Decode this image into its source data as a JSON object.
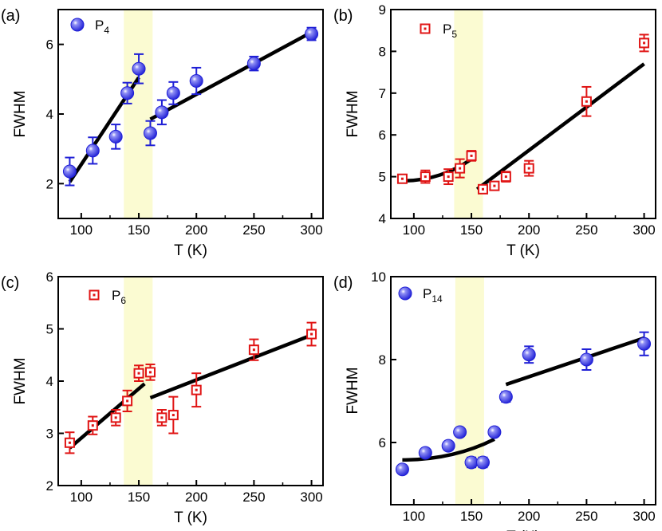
{
  "figure": {
    "colors": {
      "blue": "#1f1fd6",
      "blue_light": "#8f8ff5",
      "red": "#e01414",
      "fit": "#000000",
      "band": "#fbfbd2"
    }
  },
  "chart_data": [
    {
      "type": "scatter",
      "panel_label": "(a)",
      "legend": {
        "base": "P",
        "sub": "4",
        "marker": "filled-circle",
        "color": "blue"
      },
      "xlabel": "T (K)",
      "ylabel": "FWHM",
      "xlim": [
        80,
        310
      ],
      "ylim": [
        1.0,
        7.0
      ],
      "xticks": [
        100,
        150,
        200,
        250,
        300
      ],
      "yticks": [
        2,
        4,
        6
      ],
      "highlight_band": [
        137,
        162
      ],
      "points": [
        {
          "x": 90,
          "y": 2.35,
          "err": 0.4
        },
        {
          "x": 110,
          "y": 2.95,
          "err": 0.38
        },
        {
          "x": 130,
          "y": 3.35,
          "err": 0.35
        },
        {
          "x": 140,
          "y": 4.6,
          "err": 0.3
        },
        {
          "x": 150,
          "y": 5.3,
          "err": 0.42
        },
        {
          "x": 160,
          "y": 3.45,
          "err": 0.35
        },
        {
          "x": 170,
          "y": 4.05,
          "err": 0.35
        },
        {
          "x": 180,
          "y": 4.6,
          "err": 0.32
        },
        {
          "x": 200,
          "y": 4.95,
          "err": 0.38
        },
        {
          "x": 250,
          "y": 5.45,
          "err": 0.2
        },
        {
          "x": 300,
          "y": 6.3,
          "err": 0.18
        }
      ],
      "fit_lines": [
        {
          "x": [
            90,
            150
          ],
          "y": [
            2.05,
            5.05
          ]
        },
        {
          "x": [
            160,
            300
          ],
          "y": [
            3.85,
            6.35
          ]
        }
      ]
    },
    {
      "type": "scatter",
      "panel_label": "(b)",
      "legend": {
        "base": "P",
        "sub": "5",
        "marker": "open-square",
        "color": "red"
      },
      "xlabel": "T (K)",
      "ylabel": "FWHM",
      "xlim": [
        80,
        310
      ],
      "ylim": [
        4,
        9
      ],
      "xticks": [
        100,
        150,
        200,
        250,
        300
      ],
      "yticks": [
        4,
        5,
        6,
        7,
        8,
        9
      ],
      "highlight_band": [
        135,
        160
      ],
      "points": [
        {
          "x": 90,
          "y": 4.95,
          "err": 0.08
        },
        {
          "x": 110,
          "y": 5.0,
          "err": 0.15
        },
        {
          "x": 130,
          "y": 5.0,
          "err": 0.18
        },
        {
          "x": 140,
          "y": 5.2,
          "err": 0.22
        },
        {
          "x": 150,
          "y": 5.5,
          "err": 0.12
        },
        {
          "x": 160,
          "y": 4.7,
          "err": 0.08
        },
        {
          "x": 170,
          "y": 4.78,
          "err": 0.08
        },
        {
          "x": 180,
          "y": 5.0,
          "err": 0.12
        },
        {
          "x": 200,
          "y": 5.2,
          "err": 0.18
        },
        {
          "x": 250,
          "y": 6.8,
          "err": 0.35
        },
        {
          "x": 300,
          "y": 8.2,
          "err": 0.2
        }
      ],
      "fit_lines": [
        {
          "x": [
            90,
            150
          ],
          "y": [
            4.9,
            5.42
          ],
          "curve": "concave-up"
        },
        {
          "x": [
            155,
            300
          ],
          "y": [
            4.7,
            7.7
          ]
        }
      ]
    },
    {
      "type": "scatter",
      "panel_label": "(c)",
      "legend": {
        "base": "P",
        "sub": "6",
        "marker": "open-square",
        "color": "red"
      },
      "xlabel": "T (K)",
      "ylabel": "FWHM",
      "xlim": [
        80,
        310
      ],
      "ylim": [
        2,
        6
      ],
      "xticks": [
        100,
        150,
        200,
        250,
        300
      ],
      "yticks": [
        2,
        3,
        4,
        5,
        6
      ],
      "highlight_band": [
        137,
        162
      ],
      "points": [
        {
          "x": 90,
          "y": 2.82,
          "err": 0.2
        },
        {
          "x": 110,
          "y": 3.15,
          "err": 0.17
        },
        {
          "x": 130,
          "y": 3.3,
          "err": 0.15
        },
        {
          "x": 140,
          "y": 3.62,
          "err": 0.2
        },
        {
          "x": 150,
          "y": 4.15,
          "err": 0.15
        },
        {
          "x": 160,
          "y": 4.17,
          "err": 0.15
        },
        {
          "x": 170,
          "y": 3.3,
          "err": 0.15
        },
        {
          "x": 180,
          "y": 3.35,
          "err": 0.35
        },
        {
          "x": 200,
          "y": 3.83,
          "err": 0.32
        },
        {
          "x": 250,
          "y": 4.6,
          "err": 0.2
        },
        {
          "x": 300,
          "y": 4.9,
          "err": 0.22
        }
      ],
      "fit_lines": [
        {
          "x": [
            90,
            155
          ],
          "y": [
            2.72,
            3.95
          ]
        },
        {
          "x": [
            160,
            300
          ],
          "y": [
            3.68,
            4.88
          ]
        }
      ]
    },
    {
      "type": "scatter",
      "panel_label": "(d)",
      "legend": {
        "base": "P",
        "sub": "14",
        "marker": "filled-circle",
        "color": "blue"
      },
      "xlabel": "T (K)",
      "ylabel": "FWHM",
      "xlim": [
        80,
        310
      ],
      "ylim": [
        4.5,
        10
      ],
      "xticks": [
        100,
        150,
        200,
        250,
        300
      ],
      "yticks": [
        6,
        8,
        10
      ],
      "highlight_band": [
        136,
        161
      ],
      "points": [
        {
          "x": 90,
          "y": 5.35,
          "err": 0.08
        },
        {
          "x": 110,
          "y": 5.75,
          "err": 0.08
        },
        {
          "x": 130,
          "y": 5.92,
          "err": 0.1
        },
        {
          "x": 140,
          "y": 6.25,
          "err": 0.08
        },
        {
          "x": 150,
          "y": 5.52,
          "err": 0.12
        },
        {
          "x": 160,
          "y": 5.52,
          "err": 0.12
        },
        {
          "x": 170,
          "y": 6.25,
          "err": 0.08
        },
        {
          "x": 180,
          "y": 7.1,
          "err": 0.12
        },
        {
          "x": 200,
          "y": 8.12,
          "err": 0.2
        },
        {
          "x": 250,
          "y": 8.0,
          "err": 0.25
        },
        {
          "x": 300,
          "y": 8.38,
          "err": 0.28
        }
      ],
      "fit_lines": [
        {
          "x": [
            90,
            170
          ],
          "y": [
            5.58,
            6.08
          ],
          "curve": "concave-up"
        },
        {
          "x": [
            180,
            300
          ],
          "y": [
            7.4,
            8.52
          ]
        }
      ]
    }
  ]
}
